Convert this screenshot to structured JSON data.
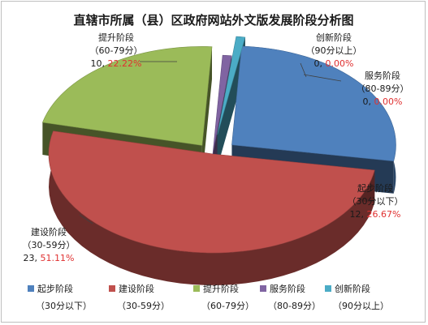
{
  "chart_data": {
    "type": "pie",
    "title": "直辖市所属（县）区政府网站外文版发展阶段分析图",
    "series": [
      {
        "name": "起步阶段",
        "range": "30分以下",
        "count": 12,
        "percent": "26.67%",
        "color": "#4f81bd"
      },
      {
        "name": "建设阶段",
        "range": "30-59分",
        "count": 23,
        "percent": "51.11%",
        "color": "#c0504d"
      },
      {
        "name": "提升阶段",
        "range": "60-79分",
        "count": 10,
        "percent": "22.22%",
        "color": "#9bbb59"
      },
      {
        "name": "服务阶段",
        "range": "80-89分",
        "count": 0,
        "percent": "0.00%",
        "color": "#8064a2"
      },
      {
        "name": "创新阶段",
        "range": "90分以上",
        "count": 0,
        "percent": "0.00%",
        "color": "#4bacc6"
      }
    ],
    "legend_position": "bottom"
  }
}
